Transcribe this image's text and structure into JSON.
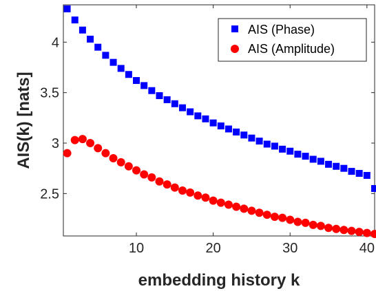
{
  "chart_data": {
    "type": "scatter",
    "title": "",
    "xlabel": "embedding history k",
    "ylabel": "AIS(k) [nats]",
    "xlim": [
      0.5,
      41
    ],
    "ylim": [
      2.08,
      4.37
    ],
    "x_ticks": [
      10,
      20,
      30,
      40
    ],
    "y_ticks": [
      2.5,
      3,
      3.5,
      4
    ],
    "x_tick_labels": [
      "10",
      "20",
      "30",
      "40"
    ],
    "y_tick_labels": [
      "2.5",
      "3",
      "3.5",
      "4"
    ],
    "grid": false,
    "legend_position": "top-right",
    "x": [
      1,
      2,
      3,
      4,
      5,
      6,
      7,
      8,
      9,
      10,
      11,
      12,
      13,
      14,
      15,
      16,
      17,
      18,
      19,
      20,
      21,
      22,
      23,
      24,
      25,
      26,
      27,
      28,
      29,
      30,
      31,
      32,
      33,
      34,
      35,
      36,
      37,
      38,
      39,
      40,
      41
    ],
    "series": [
      {
        "name": "AIS (Phase)",
        "color": "#0000ff",
        "marker": "square",
        "values": [
          4.33,
          4.22,
          4.12,
          4.03,
          3.95,
          3.87,
          3.8,
          3.74,
          3.68,
          3.62,
          3.57,
          3.52,
          3.47,
          3.43,
          3.39,
          3.35,
          3.31,
          3.27,
          3.24,
          3.2,
          3.17,
          3.14,
          3.11,
          3.08,
          3.05,
          3.02,
          2.99,
          2.97,
          2.94,
          2.92,
          2.89,
          2.87,
          2.84,
          2.82,
          2.79,
          2.77,
          2.75,
          2.72,
          2.7,
          2.68,
          2.55
        ]
      },
      {
        "name": "AIS (Amplitude)",
        "color": "#ff0000",
        "marker": "circle",
        "values": [
          2.9,
          3.03,
          3.04,
          3.0,
          2.95,
          2.9,
          2.85,
          2.81,
          2.77,
          2.73,
          2.69,
          2.66,
          2.62,
          2.59,
          2.56,
          2.53,
          2.51,
          2.48,
          2.46,
          2.43,
          2.41,
          2.39,
          2.37,
          2.35,
          2.33,
          2.31,
          2.29,
          2.27,
          2.26,
          2.24,
          2.22,
          2.21,
          2.19,
          2.18,
          2.16,
          2.15,
          2.14,
          2.13,
          2.12,
          2.11,
          2.1
        ]
      }
    ]
  }
}
